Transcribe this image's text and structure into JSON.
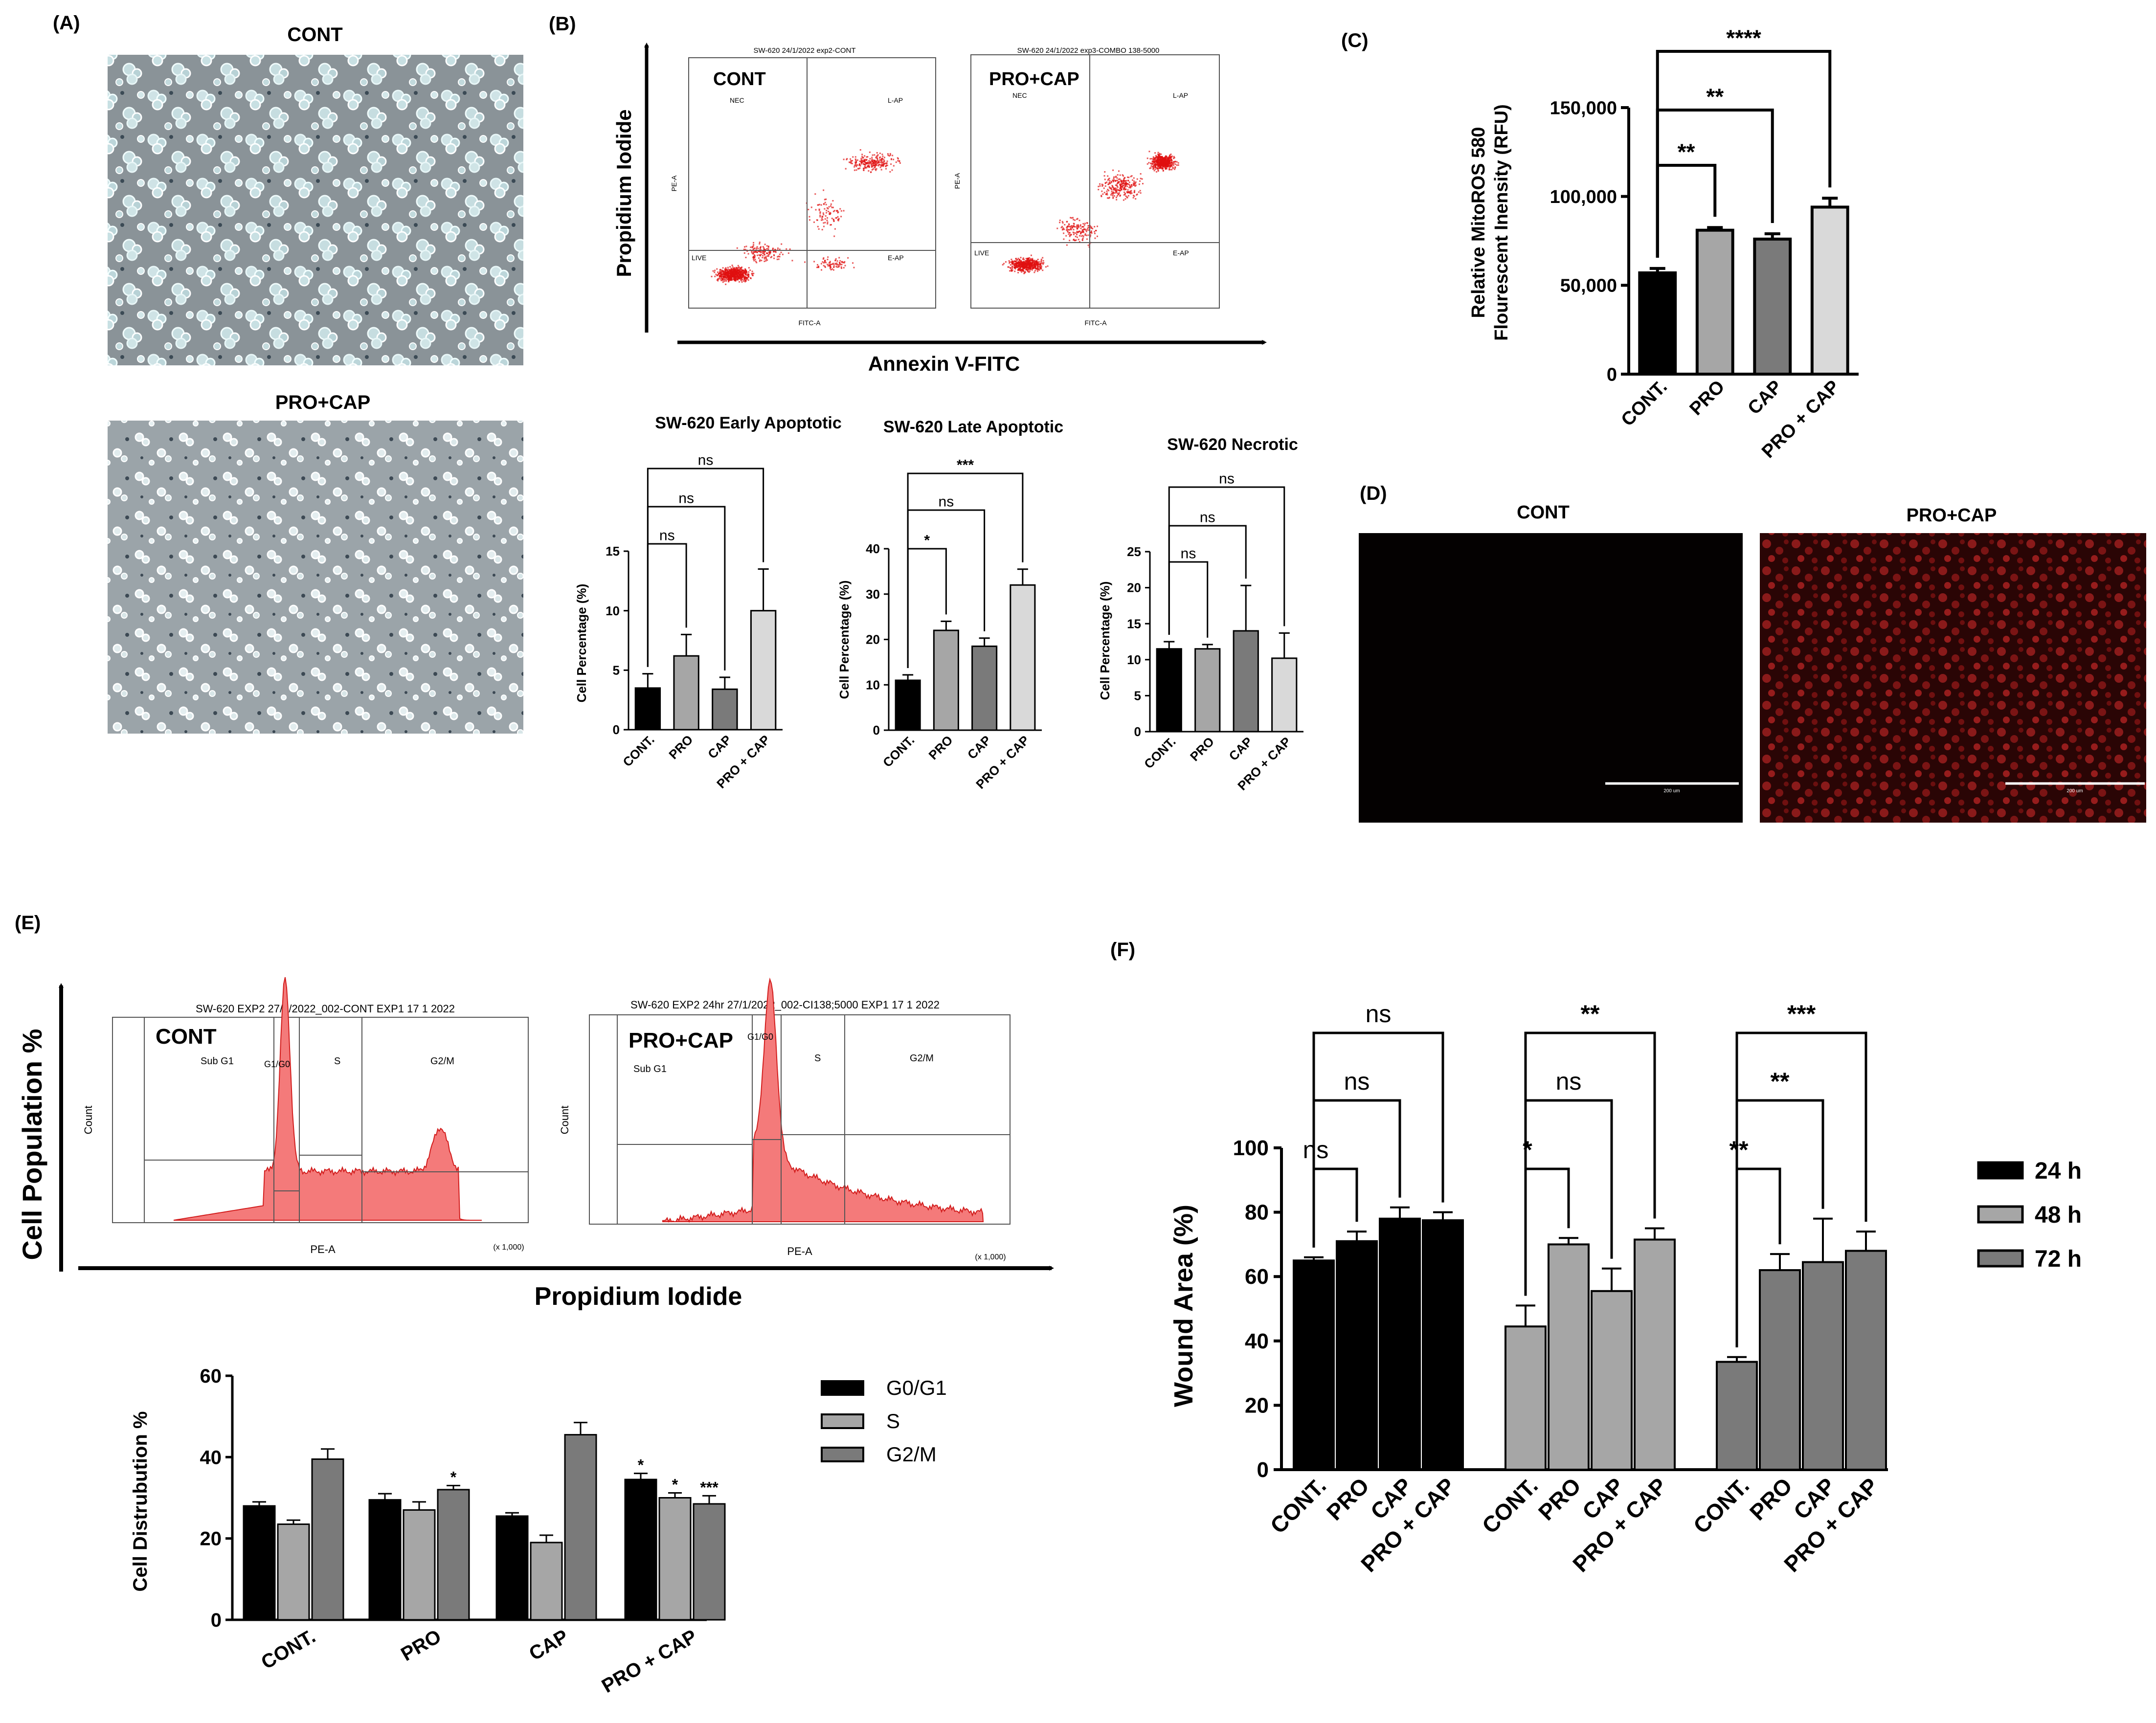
{
  "panels": {
    "A": {
      "letter": "(A)",
      "top_title": "CONT",
      "bottom_title": "PRO+CAP"
    },
    "B": {
      "letter": "(B)",
      "y_axis": "Propidium Iodide",
      "x_axis": "Annexin V-FITC",
      "left": {
        "title": "CONT",
        "header": "SW-620  24/1/2022  exp2-CONT",
        "q_ul": "NEC",
        "q_ur": "L-AP",
        "q_ll": "LIVE",
        "q_lr": "E-AP",
        "xlab": "FITC-A",
        "ylab": "PE-A"
      },
      "right": {
        "title": "PRO+CAP",
        "header": "SW-620  24/1/2022  exp3-COMBO 138-5000",
        "q_ul": "NEC",
        "q_ur": "L-AP",
        "q_ll": "LIVE",
        "q_lr": "E-AP",
        "xlab": "FITC-A",
        "ylab": "PE-A"
      }
    },
    "C": {
      "letter": "(C)"
    },
    "D": {
      "letter": "(D)",
      "left_title": "CONT",
      "right_title": "PRO+CAP",
      "scale_label": "200 um"
    },
    "E": {
      "letter": "(E)",
      "y_axis": "Cell Population %",
      "x_axis": "Propidium Iodide",
      "left": {
        "title": "CONT",
        "header": "SW-620 EXP2 27/1/2022_002-CONT EXP1 17 1 2022",
        "g1": "Sub G1",
        "g2": "G1/G0",
        "g3": "S",
        "g4": "G2/M",
        "xlab": "PE-A",
        "ylab": "Count",
        "xscale": "(x 1,000)"
      },
      "right": {
        "title": "PRO+CAP",
        "header": "SW-620 EXP2 24hr 27/1/2022_002-CI138;5000 EXP1 17 1 2022",
        "g1": "Sub G1",
        "g2": "G1/G0",
        "g3": "S",
        "g4": "G2/M",
        "xlab": "PE-A",
        "ylab": "Count",
        "xscale": "(x 1,000)"
      }
    },
    "F": {
      "letter": "(F)"
    }
  },
  "chart_data": [
    {
      "id": "C",
      "type": "bar",
      "title": "",
      "ylabel_lines": [
        "Relative MitoROS 580",
        "Flourescent Inensity (RFU)"
      ],
      "categories": [
        "CONT.",
        "PRO",
        "CAP",
        "PRO + CAP"
      ],
      "values": [
        57000,
        81000,
        76000,
        94000
      ],
      "errors": [
        2500,
        1500,
        3000,
        5000
      ],
      "colors": [
        "#000000",
        "#a6a6a6",
        "#7a7a7a",
        "#d9d9d9"
      ],
      "ylim": [
        0,
        150000
      ],
      "ticks": [
        {
          "v": 0,
          "t": "0"
        },
        {
          "v": 50000,
          "t": "50,000"
        },
        {
          "v": 100000,
          "t": "100,000"
        },
        {
          "v": 150000,
          "t": "150,000"
        }
      ],
      "sig": [
        {
          "to": 1,
          "label": "**"
        },
        {
          "to": 2,
          "label": "**"
        },
        {
          "to": 3,
          "label": "****"
        }
      ]
    },
    {
      "id": "B1",
      "type": "bar",
      "title": "SW-620 Early Apoptotic",
      "ylabel": "Cell Percentage (%)",
      "categories": [
        "CONT.",
        "PRO",
        "CAP",
        "PRO + CAP"
      ],
      "values": [
        3.5,
        6.2,
        3.4,
        10.0
      ],
      "errors": [
        1.2,
        1.8,
        1.0,
        3.5
      ],
      "colors": [
        "#000000",
        "#a6a6a6",
        "#7a7a7a",
        "#d9d9d9"
      ],
      "ylim": [
        0,
        15
      ],
      "ticks": [
        {
          "v": 0,
          "t": "0"
        },
        {
          "v": 5,
          "t": "5"
        },
        {
          "v": 10,
          "t": "10"
        },
        {
          "v": 15,
          "t": "15"
        }
      ],
      "sig": [
        {
          "to": 1,
          "label": "ns"
        },
        {
          "to": 2,
          "label": "ns"
        },
        {
          "to": 3,
          "label": "ns"
        }
      ]
    },
    {
      "id": "B2",
      "type": "bar",
      "title": "SW-620 Late Apoptotic",
      "ylabel": "Cell Percentage (%)",
      "categories": [
        "CONT.",
        "PRO",
        "CAP",
        "PRO + CAP"
      ],
      "values": [
        11,
        22,
        18.5,
        32
      ],
      "errors": [
        1.2,
        2.0,
        1.8,
        3.5
      ],
      "colors": [
        "#000000",
        "#a6a6a6",
        "#7a7a7a",
        "#d9d9d9"
      ],
      "ylim": [
        0,
        40
      ],
      "ticks": [
        {
          "v": 0,
          "t": "0"
        },
        {
          "v": 10,
          "t": "10"
        },
        {
          "v": 20,
          "t": "20"
        },
        {
          "v": 30,
          "t": "30"
        },
        {
          "v": 40,
          "t": "40"
        }
      ],
      "sig": [
        {
          "to": 1,
          "label": "*"
        },
        {
          "to": 2,
          "label": "ns"
        },
        {
          "to": 3,
          "label": "***"
        }
      ]
    },
    {
      "id": "B3",
      "type": "bar",
      "title": "SW-620 Necrotic",
      "ylabel": "Cell Percentage (%)",
      "categories": [
        "CONT.",
        "PRO",
        "CAP",
        "PRO + CAP"
      ],
      "values": [
        11.5,
        11.5,
        14,
        10.2
      ],
      "errors": [
        1.0,
        0.6,
        6.3,
        3.5
      ],
      "colors": [
        "#000000",
        "#a6a6a6",
        "#7a7a7a",
        "#d9d9d9"
      ],
      "ylim": [
        0,
        25
      ],
      "ticks": [
        {
          "v": 0,
          "t": "0"
        },
        {
          "v": 5,
          "t": "5"
        },
        {
          "v": 10,
          "t": "10"
        },
        {
          "v": 15,
          "t": "15"
        },
        {
          "v": 20,
          "t": "20"
        },
        {
          "v": 25,
          "t": "25"
        }
      ],
      "sig": [
        {
          "to": 1,
          "label": "ns"
        },
        {
          "to": 2,
          "label": "ns"
        },
        {
          "to": 3,
          "label": "ns"
        }
      ]
    },
    {
      "id": "E",
      "type": "bar",
      "title": "",
      "ylabel": "Cell Distrubution %",
      "categories": [
        "CONT.",
        "PRO",
        "CAP",
        "PRO + CAP"
      ],
      "series": [
        {
          "name": "G0/G1",
          "color": "#000000",
          "values": [
            28,
            29.5,
            25.5,
            34.5
          ],
          "errors": [
            1.0,
            1.5,
            0.8,
            1.5
          ],
          "stars": [
            "",
            "",
            "",
            "*"
          ]
        },
        {
          "name": "S",
          "color": "#a6a6a6",
          "values": [
            23.5,
            27,
            19,
            30
          ],
          "errors": [
            1.0,
            2.0,
            1.8,
            1.2
          ],
          "stars": [
            "",
            "",
            "",
            "*"
          ]
        },
        {
          "name": "G2/M",
          "color": "#7a7a7a",
          "values": [
            39.5,
            32,
            45.5,
            28.5
          ],
          "errors": [
            2.5,
            1.0,
            3.0,
            2.0
          ],
          "stars": [
            "",
            "*",
            "",
            "***"
          ]
        }
      ],
      "ylim": [
        0,
        60
      ],
      "ticks": [
        {
          "v": 0,
          "t": "0"
        },
        {
          "v": 20,
          "t": "20"
        },
        {
          "v": 40,
          "t": "40"
        },
        {
          "v": 60,
          "t": "60"
        }
      ],
      "legend": "right"
    },
    {
      "id": "F",
      "type": "bar",
      "title": "",
      "ylabel": "Wound Area (%)",
      "groups": [
        {
          "name": "24 h",
          "color": "#000000",
          "categories": [
            "CONT.",
            "PRO",
            "CAP",
            "PRO + CAP"
          ],
          "values": [
            65,
            71,
            78,
            77.5
          ],
          "errors": [
            1.0,
            3.0,
            3.5,
            2.5
          ],
          "sig": [
            {
              "to": 1,
              "label": "ns"
            },
            {
              "to": 2,
              "label": "ns"
            },
            {
              "to": 3,
              "label": "ns"
            }
          ]
        },
        {
          "name": "48 h",
          "color": "#a6a6a6",
          "categories": [
            "CONT.",
            "PRO",
            "CAP",
            "PRO + CAP"
          ],
          "values": [
            44.5,
            70,
            55.5,
            71.5
          ],
          "errors": [
            6.5,
            2.0,
            7.0,
            3.5
          ],
          "sig": [
            {
              "to": 1,
              "label": "*"
            },
            {
              "to": 2,
              "label": "ns"
            },
            {
              "to": 3,
              "label": "**"
            }
          ]
        },
        {
          "name": "72 h",
          "color": "#7a7a7a",
          "categories": [
            "CONT.",
            "PRO",
            "CAP",
            "PRO + CAP"
          ],
          "values": [
            33.5,
            62,
            64.5,
            68
          ],
          "errors": [
            1.5,
            5.0,
            13.5,
            6.0
          ],
          "sig": [
            {
              "to": 1,
              "label": "**"
            },
            {
              "to": 2,
              "label": "**"
            },
            {
              "to": 3,
              "label": "***"
            }
          ]
        }
      ],
      "ylim": [
        0,
        100
      ],
      "ticks": [
        {
          "v": 0,
          "t": "0"
        },
        {
          "v": 20,
          "t": "20"
        },
        {
          "v": 40,
          "t": "40"
        },
        {
          "v": 60,
          "t": "60"
        },
        {
          "v": 80,
          "t": "80"
        },
        {
          "v": 100,
          "t": "100"
        }
      ],
      "legend": "right"
    }
  ]
}
